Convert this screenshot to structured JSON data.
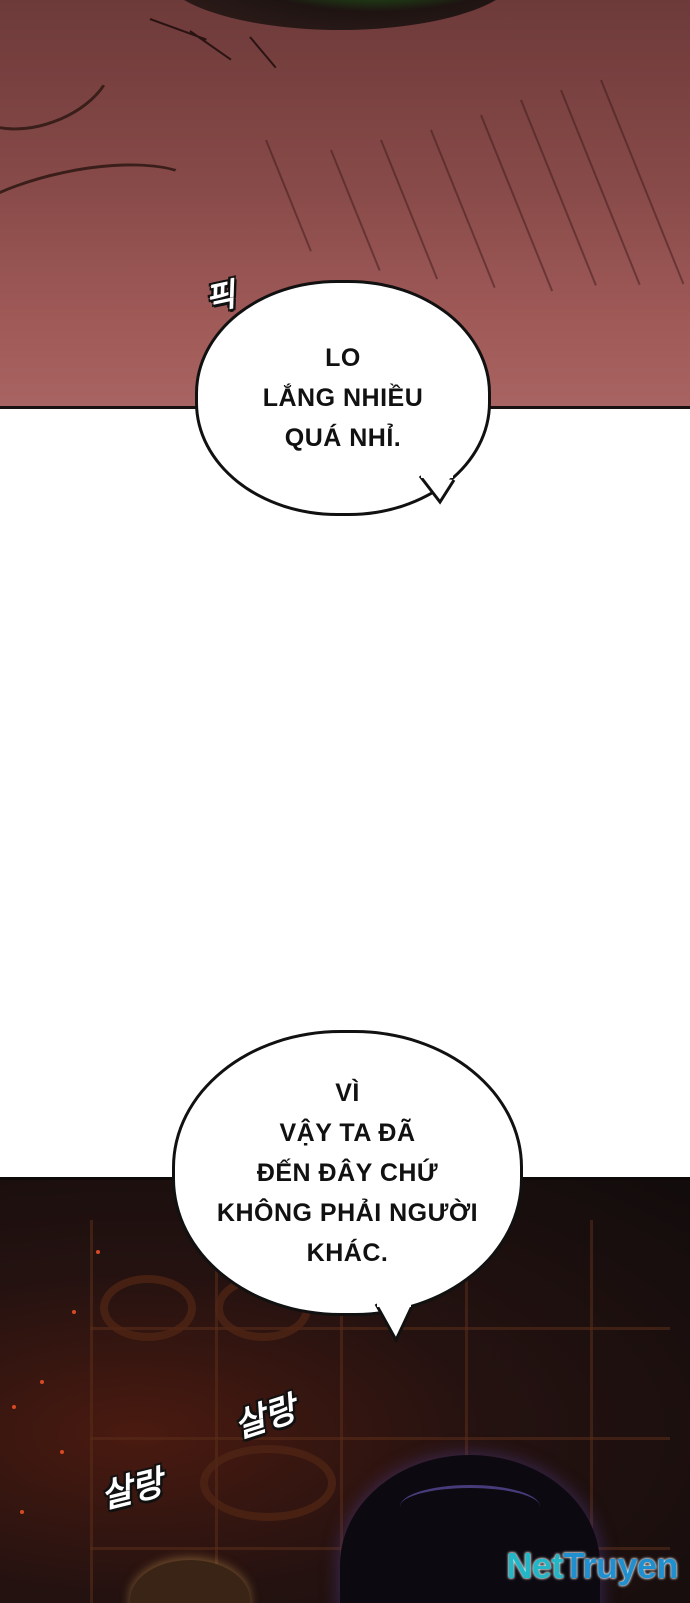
{
  "bubbles": {
    "first": {
      "lines": [
        "LO",
        "LẮNG NHIỀU",
        "QUÁ NHỈ."
      ]
    },
    "second": {
      "lines": [
        "VÌ",
        "VẬY TA ĐÃ",
        "ĐẾN ĐÂY CHỨ",
        "KHÔNG PHẢI NGƯỜI",
        "KHÁC."
      ]
    }
  },
  "sfx": {
    "pik": "픽",
    "salang_1": "살랑",
    "salang_2": "살랑"
  },
  "watermark": {
    "part1": "Net",
    "part2": "Truyen"
  },
  "colors": {
    "top_panel": "#874a48",
    "bottom_panel": "#120c0c",
    "eye_green": "#46c830",
    "watermark_net": "#23b6c6",
    "watermark_truyen": "#1f8fd0"
  }
}
